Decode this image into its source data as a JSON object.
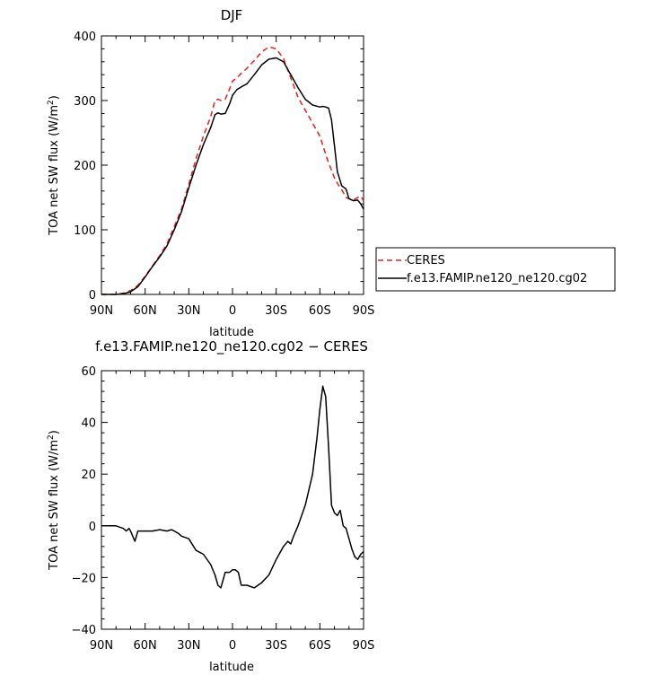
{
  "chart_data": [
    {
      "type": "line",
      "title": "DJF",
      "xlabel": "latitude",
      "ylabel": "TOA net SW flux (W/m²)",
      "ylabel_parts": {
        "main": "TOA net SW flux (W/m",
        "sup": "2",
        "close": ")"
      },
      "xlim": [
        -90,
        90
      ],
      "ylim": [
        0,
        400
      ],
      "xticks": [
        -90,
        -60,
        -30,
        0,
        30,
        60,
        90
      ],
      "xtick_labels": [
        "90N",
        "60N",
        "30N",
        "0",
        "30S",
        "60S",
        "90S"
      ],
      "yticks": [
        0,
        100,
        200,
        300,
        400
      ],
      "ytick_labels": [
        "0",
        "100",
        "200",
        "300",
        "400"
      ],
      "legend_position": "right",
      "series": [
        {
          "name": "CERES",
          "color": "#e8201a",
          "dash": "dashed",
          "x": [
            -90,
            -85,
            -80,
            -75,
            -70,
            -65,
            -60,
            -55,
            -50,
            -45,
            -40,
            -35,
            -30,
            -25,
            -20,
            -15,
            -12,
            -10,
            -8,
            -5,
            -2,
            0,
            3,
            6,
            10,
            15,
            20,
            25,
            30,
            35,
            40,
            45,
            50,
            55,
            60,
            65,
            70,
            72,
            75,
            78,
            80,
            83,
            86,
            88,
            90
          ],
          "y": [
            0,
            0,
            0,
            2,
            6,
            14,
            28,
            44,
            60,
            78,
            105,
            132,
            170,
            210,
            245,
            275,
            300,
            302,
            300,
            302,
            318,
            330,
            335,
            342,
            350,
            362,
            375,
            383,
            380,
            365,
            335,
            305,
            285,
            265,
            245,
            210,
            180,
            172,
            162,
            150,
            148,
            146,
            150,
            152,
            145
          ]
        },
        {
          "name": "f.e13.FAMIP.ne120_ne120.cg02",
          "color": "#000000",
          "dash": "solid",
          "x": [
            -90,
            -85,
            -80,
            -75,
            -70,
            -65,
            -60,
            -55,
            -50,
            -45,
            -40,
            -35,
            -30,
            -25,
            -20,
            -15,
            -12,
            -10,
            -8,
            -5,
            -2,
            0,
            3,
            6,
            10,
            15,
            20,
            25,
            30,
            35,
            40,
            45,
            50,
            55,
            60,
            62,
            64,
            66,
            68,
            70,
            72,
            75,
            78,
            80,
            83,
            86,
            88,
            90
          ],
          "y": [
            0,
            0,
            0,
            1,
            4,
            12,
            27,
            43,
            58,
            75,
            100,
            128,
            165,
            200,
            232,
            258,
            278,
            281,
            279,
            280,
            295,
            308,
            317,
            321,
            326,
            340,
            355,
            364,
            366,
            360,
            340,
            320,
            302,
            293,
            290,
            291,
            290,
            288,
            270,
            230,
            190,
            168,
            163,
            148,
            145,
            146,
            140,
            132
          ]
        }
      ]
    },
    {
      "type": "line",
      "title": "f.e13.FAMIP.ne120_ne120.cg02 − CERES",
      "xlabel": "latitude",
      "ylabel": "TOA net SW flux (W/m²)",
      "ylabel_parts": {
        "main": "TOA net SW flux (W/m",
        "sup": "2",
        "close": ")"
      },
      "xlim": [
        -90,
        90
      ],
      "ylim": [
        -40,
        60
      ],
      "xticks": [
        -90,
        -60,
        -30,
        0,
        30,
        60,
        90
      ],
      "xtick_labels": [
        "90N",
        "60N",
        "30N",
        "0",
        "30S",
        "60S",
        "90S"
      ],
      "yticks": [
        -40,
        -20,
        0,
        20,
        40,
        60
      ],
      "ytick_labels": [
        "−40",
        "−20",
        "0",
        "20",
        "40",
        "60"
      ],
      "series": [
        {
          "color": "#000000",
          "dash": "solid",
          "x": [
            -90,
            -80,
            -75,
            -73,
            -71,
            -70,
            -67,
            -65,
            -60,
            -55,
            -50,
            -45,
            -42,
            -40,
            -37,
            -35,
            -30,
            -25,
            -20,
            -15,
            -12,
            -10,
            -8,
            -5,
            -2,
            0,
            2,
            4,
            6,
            10,
            15,
            20,
            25,
            30,
            35,
            38,
            40,
            42,
            45,
            50,
            55,
            58,
            60,
            62,
            64,
            66,
            68,
            70,
            72,
            74,
            76,
            78,
            80,
            82,
            84,
            86,
            88,
            90
          ],
          "y": [
            0,
            0,
            -1,
            -2,
            -1,
            -2,
            -6,
            -2,
            -2,
            -2,
            -1.5,
            -2,
            -1.5,
            -2,
            -3,
            -4,
            -5,
            -9.5,
            -11,
            -15,
            -19,
            -23,
            -24,
            -18,
            -18,
            -17,
            -17,
            -18,
            -23,
            -23,
            -24,
            -22,
            -19,
            -13,
            -8,
            -6,
            -7,
            -4,
            0,
            8,
            20,
            34,
            45,
            54,
            50,
            30,
            8,
            5,
            4,
            6,
            0,
            -1,
            -5,
            -9,
            -12,
            -13,
            -11,
            -10
          ]
        }
      ]
    }
  ]
}
